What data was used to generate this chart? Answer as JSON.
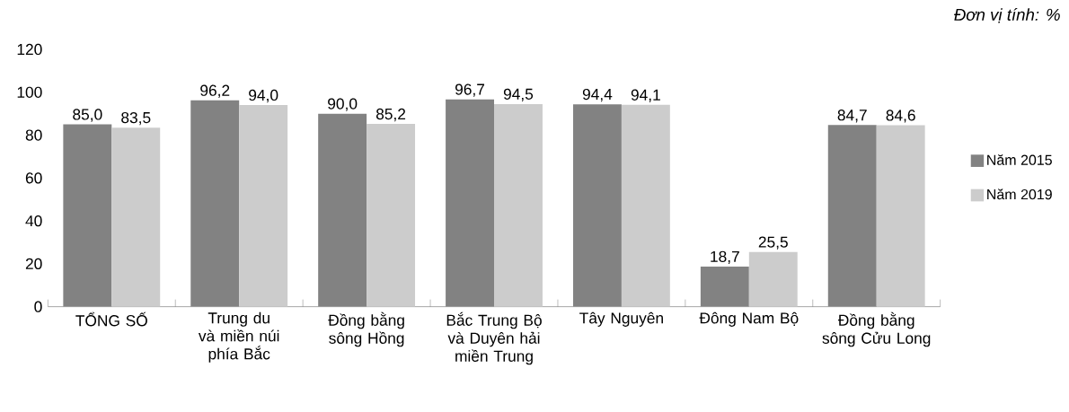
{
  "chart_data": {
    "type": "bar",
    "annotations": [
      "Đơn vị tính: %"
    ],
    "categories": [
      "TỔNG SỐ",
      "Trung du và miền núi phía Bắc",
      "Đồng bằng sông Hồng",
      "Bắc Trung Bộ và Duyên hải miền Trung",
      "Tây Nguyên",
      "Đông Nam Bộ",
      "Đồng bằng sông Cửu Long"
    ],
    "series": [
      {
        "name": "Năm 2015",
        "color": "#828282",
        "values": [
          85.0,
          96.2,
          90.0,
          96.7,
          94.4,
          18.7,
          84.7
        ],
        "value_labels": [
          "85,0",
          "96,2",
          "90,0",
          "96,7",
          "94,4",
          "18,7",
          "84,7"
        ]
      },
      {
        "name": "Năm 2019",
        "color": "#cccccc",
        "values": [
          83.5,
          94.0,
          85.2,
          94.5,
          94.1,
          25.5,
          84.6
        ],
        "value_labels": [
          "83,5",
          "94,0",
          "85,2",
          "94,5",
          "94,1",
          "25,5",
          "84,6"
        ]
      }
    ],
    "ylim": [
      0,
      120
    ],
    "yticks": [
      0,
      20,
      40,
      60,
      80,
      100,
      120
    ],
    "grid": false,
    "legend": "right"
  }
}
